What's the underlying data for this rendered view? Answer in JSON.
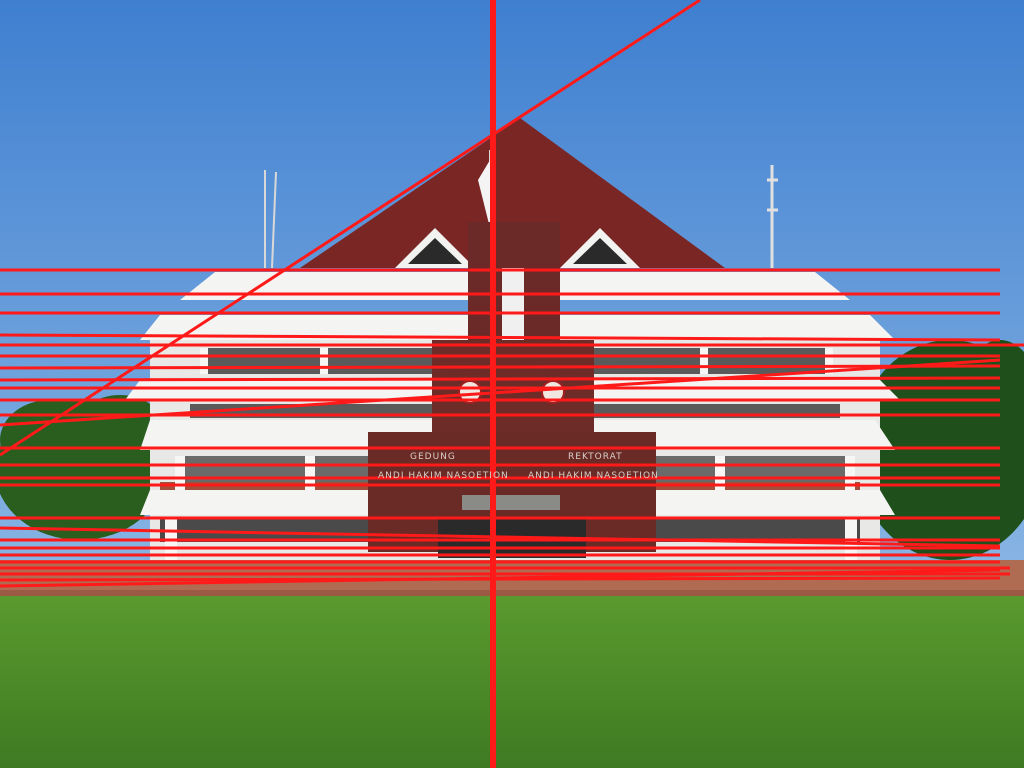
{
  "sign": {
    "top_left": "GEDUNG",
    "top_right": "REKTORAT",
    "left_line": "ANDI HAKIM NASOETION",
    "right_line": "ANDI HAKIM NASOETION"
  },
  "colors": {
    "sky_top": "#3f7fd0",
    "sky_bottom": "#86b4e4",
    "roof": "#7a2624",
    "facade": "#f2f2f0",
    "brick": "#a0503a",
    "monument": "#6a2a26",
    "grass": "#4f8a2a",
    "tree": "#245a1e",
    "overlay_line": "#ff1a1a"
  },
  "overlay": {
    "description": ""
  }
}
